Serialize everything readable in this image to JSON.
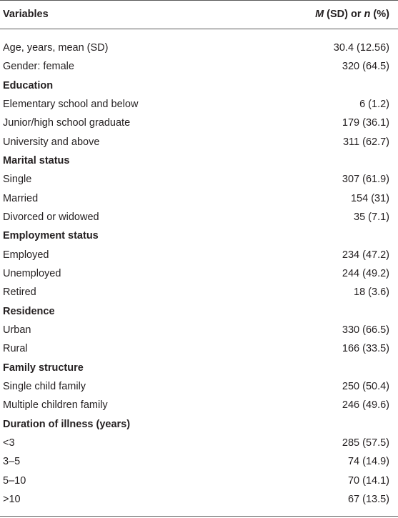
{
  "header": {
    "col1": "Variables",
    "col2_m": "M",
    "col2_mid": " (SD) or ",
    "col2_n": "n",
    "col2_end": " (%)"
  },
  "rows": [
    {
      "label": "Age, years, mean (SD)",
      "value": "30.4 (12.56)"
    },
    {
      "label": "Gender: female",
      "value": "320 (64.5)"
    },
    {
      "label": "Education",
      "value": "",
      "section": true
    },
    {
      "label": "Elementary school and below",
      "value": "6 (1.2)"
    },
    {
      "label": "Junior/high school graduate",
      "value": "179 (36.1)"
    },
    {
      "label": "University and above",
      "value": "311 (62.7)"
    },
    {
      "label": "Marital status",
      "value": "",
      "section": true
    },
    {
      "label": "Single",
      "value": "307 (61.9)"
    },
    {
      "label": "Married",
      "value": "154 (31)"
    },
    {
      "label": "Divorced or widowed",
      "value": "35 (7.1)"
    },
    {
      "label": "Employment status",
      "value": "",
      "section": true
    },
    {
      "label": "Employed",
      "value": "234 (47.2)"
    },
    {
      "label": "Unemployed",
      "value": "244 (49.2)"
    },
    {
      "label": "Retired",
      "value": "18 (3.6)"
    },
    {
      "label": "Residence",
      "value": "",
      "section": true
    },
    {
      "label": "Urban",
      "value": "330 (66.5)"
    },
    {
      "label": "Rural",
      "value": "166 (33.5)"
    },
    {
      "label": "Family structure",
      "value": "",
      "section": true
    },
    {
      "label": "Single child family",
      "value": "250 (50.4)"
    },
    {
      "label": "Multiple children family",
      "value": "246 (49.6)"
    },
    {
      "label": "Duration of illness (years)",
      "value": "",
      "section": true
    },
    {
      "label": "<3",
      "value": "285 (57.5)"
    },
    {
      "label": "3–5",
      "value": "74 (14.9)"
    },
    {
      "label": "5–10",
      "value": "70 (14.1)"
    },
    {
      "label": ">10",
      "value": "67 (13.5)"
    }
  ]
}
